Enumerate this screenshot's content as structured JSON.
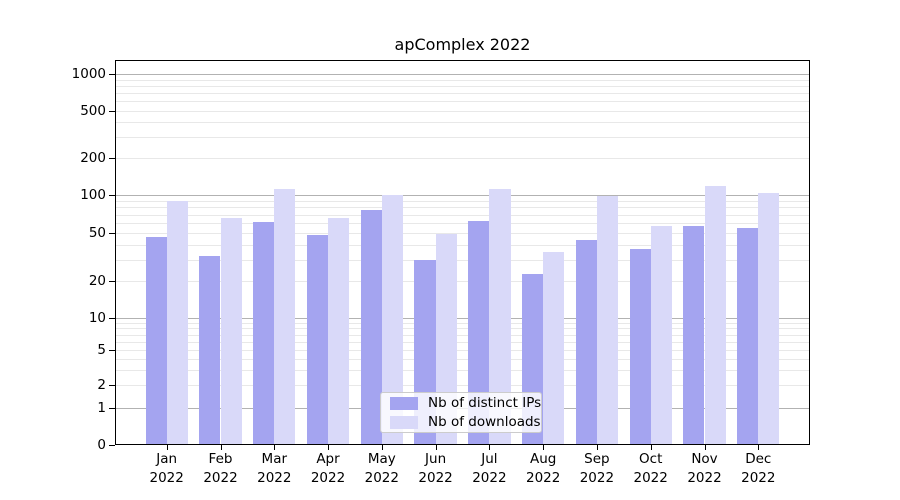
{
  "title": "apComplex 2022",
  "chart_data": {
    "type": "bar",
    "title": "apComplex 2022",
    "categories": [
      "Jan 2022",
      "Feb 2022",
      "Mar 2022",
      "Apr 2022",
      "May 2022",
      "Jun 2022",
      "Jul 2022",
      "Aug 2022",
      "Sep 2022",
      "Oct 2022",
      "Nov 2022",
      "Dec 2022"
    ],
    "series": [
      {
        "name": "Nb of distinct IPs",
        "color": "#a4a4f0",
        "values": [
          46,
          32,
          61,
          48,
          76,
          30,
          62,
          23,
          44,
          37,
          57,
          55
        ]
      },
      {
        "name": "Nb of downloads",
        "color": "#d9d9f9",
        "values": [
          90,
          66,
          113,
          66,
          100,
          49,
          111,
          35,
          98,
          57,
          119,
          103
        ]
      }
    ],
    "xlabel": "",
    "ylabel": "",
    "yscale": "symlog",
    "yticks": [
      0,
      1,
      2,
      5,
      10,
      20,
      50,
      100,
      200,
      500,
      1000
    ],
    "ylim": [
      0,
      1450
    ],
    "grid": true,
    "legend_position": "lower center"
  },
  "legend": {
    "items": [
      {
        "label": "Nb of distinct IPs",
        "color": "#a4a4f0"
      },
      {
        "label": "Nb of downloads",
        "color": "#d9d9f9"
      }
    ]
  },
  "colors": {
    "series1": "#a4a4f0",
    "series2": "#d9d9f9",
    "grid_major": "#b3b3b3",
    "grid_minor": "#e8e8e8",
    "axis": "#000000",
    "background": "#ffffff"
  }
}
